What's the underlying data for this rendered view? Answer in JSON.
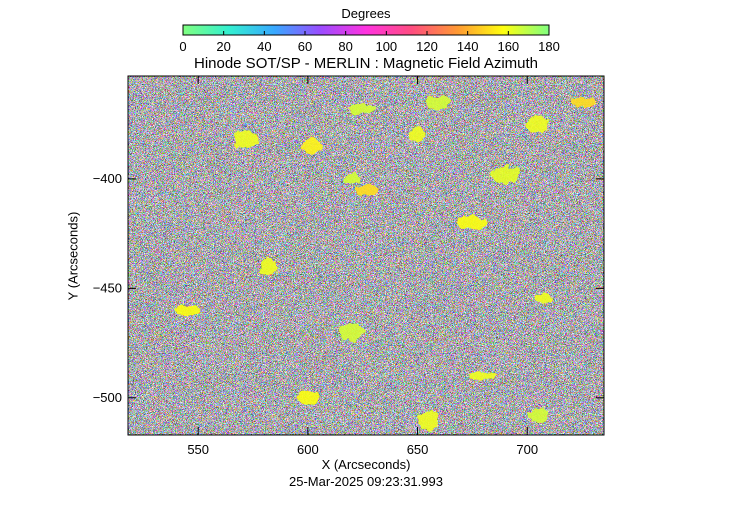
{
  "chart_data": {
    "type": "heatmap",
    "title": "Hinode SOT/SP - MERLIN : Magnetic Field Azimuth",
    "xlabel": "X (Arcseconds)",
    "ylabel": "Y (Arcseconds)",
    "timestamp": "25-Mar-2025 09:23:31.993",
    "xlim": [
      518,
      735
    ],
    "ylim": [
      -517,
      -353
    ],
    "x_ticks": [
      550,
      600,
      650,
      700
    ],
    "y_ticks": [
      -400,
      -450,
      -500
    ],
    "colorbar": {
      "title": "Degrees",
      "range": [
        0,
        180
      ],
      "ticks": [
        0,
        20,
        40,
        60,
        80,
        100,
        120,
        140,
        160,
        180
      ],
      "colormap": "cyclic",
      "stops": [
        "#80ff80",
        "#33f0d0",
        "#38a8ff",
        "#9a4cff",
        "#ff33e0",
        "#ff4d80",
        "#ff9933",
        "#ffff10",
        "#80ff80"
      ]
    },
    "bright_patches": [
      {
        "x": 620,
        "y": -400,
        "value": 165
      },
      {
        "x": 602,
        "y": -385,
        "value": 155
      },
      {
        "x": 572,
        "y": -382,
        "value": 160
      },
      {
        "x": 625,
        "y": -368,
        "value": 165
      },
      {
        "x": 650,
        "y": -380,
        "value": 160
      },
      {
        "x": 705,
        "y": -375,
        "value": 160
      },
      {
        "x": 725,
        "y": -365,
        "value": 150
      },
      {
        "x": 675,
        "y": -420,
        "value": 158
      },
      {
        "x": 582,
        "y": -440,
        "value": 160
      },
      {
        "x": 627,
        "y": -405,
        "value": 150
      },
      {
        "x": 660,
        "y": -365,
        "value": 165
      },
      {
        "x": 690,
        "y": -398,
        "value": 162
      },
      {
        "x": 708,
        "y": -455,
        "value": 160
      },
      {
        "x": 600,
        "y": -500,
        "value": 158
      },
      {
        "x": 620,
        "y": -470,
        "value": 165
      },
      {
        "x": 680,
        "y": -490,
        "value": 160
      },
      {
        "x": 705,
        "y": -508,
        "value": 165
      },
      {
        "x": 655,
        "y": -510,
        "value": 160
      },
      {
        "x": 545,
        "y": -460,
        "value": 158
      }
    ]
  }
}
